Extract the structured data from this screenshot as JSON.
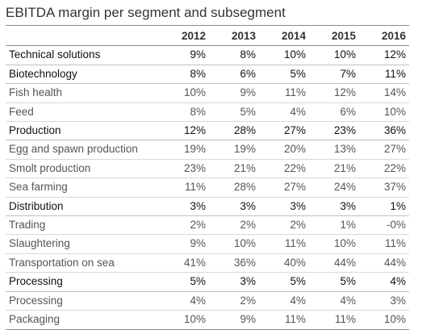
{
  "title": "EBITDA margin per segment and subsegment",
  "years": [
    "2012",
    "2013",
    "2014",
    "2015",
    "2016"
  ],
  "rows": [
    {
      "label": "Technical solutions",
      "type": "segment",
      "values": [
        "9%",
        "8%",
        "10%",
        "10%",
        "12%"
      ]
    },
    {
      "label": "Biotechnology",
      "type": "segment",
      "values": [
        "8%",
        "6%",
        "5%",
        "7%",
        "11%"
      ]
    },
    {
      "label": "Fish health",
      "type": "sub",
      "values": [
        "10%",
        "9%",
        "11%",
        "12%",
        "14%"
      ]
    },
    {
      "label": "Feed",
      "type": "sub",
      "values": [
        "8%",
        "5%",
        "4%",
        "6%",
        "10%"
      ]
    },
    {
      "label": "Production",
      "type": "segment",
      "values": [
        "12%",
        "28%",
        "27%",
        "23%",
        "36%"
      ]
    },
    {
      "label": "Egg and spawn production",
      "type": "sub",
      "values": [
        "19%",
        "19%",
        "20%",
        "13%",
        "27%"
      ]
    },
    {
      "label": "Smolt production",
      "type": "sub",
      "values": [
        "23%",
        "21%",
        "22%",
        "21%",
        "22%"
      ]
    },
    {
      "label": "Sea farming",
      "type": "sub",
      "values": [
        "11%",
        "28%",
        "27%",
        "24%",
        "37%"
      ]
    },
    {
      "label": "Distribution",
      "type": "segment",
      "values": [
        "3%",
        "3%",
        "3%",
        "3%",
        "1%"
      ]
    },
    {
      "label": "Trading",
      "type": "sub",
      "values": [
        "2%",
        "2%",
        "2%",
        "1%",
        "-0%"
      ]
    },
    {
      "label": "Slaughtering",
      "type": "sub",
      "values": [
        "9%",
        "10%",
        "11%",
        "10%",
        "11%"
      ]
    },
    {
      "label": "Transportation on sea",
      "type": "sub",
      "values": [
        "41%",
        "36%",
        "40%",
        "44%",
        "44%"
      ]
    },
    {
      "label": "Processing",
      "type": "segment",
      "values": [
        "5%",
        "3%",
        "5%",
        "5%",
        "4%"
      ]
    },
    {
      "label": "Processing",
      "type": "sub",
      "values": [
        "4%",
        "2%",
        "4%",
        "4%",
        "3%"
      ]
    },
    {
      "label": "Packaging",
      "type": "sub",
      "values": [
        "10%",
        "9%",
        "11%",
        "11%",
        "10%"
      ]
    }
  ]
}
